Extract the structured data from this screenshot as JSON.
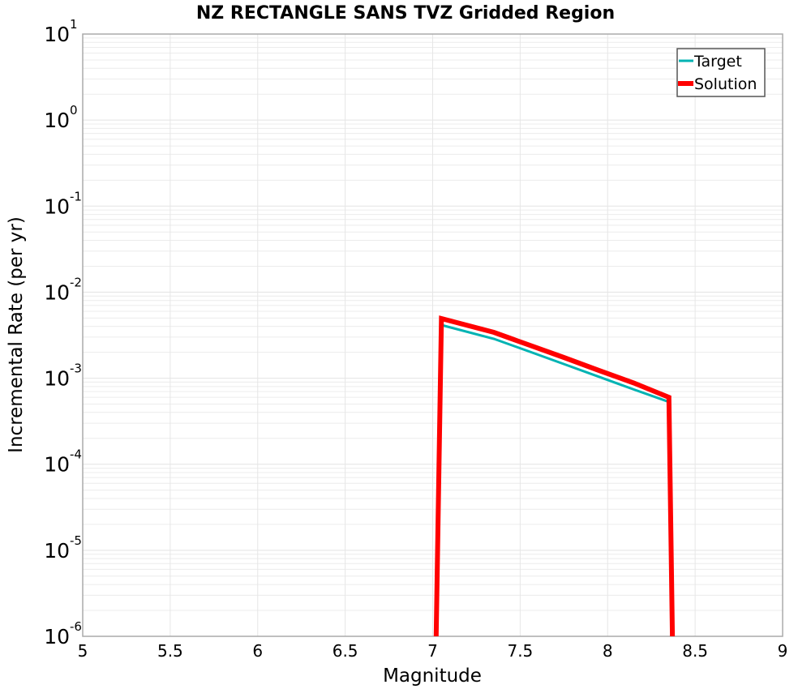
{
  "chart_data": {
    "type": "line",
    "title": "NZ RECTANGLE SANS TVZ Gridded Region",
    "xlabel": "Magnitude",
    "ylabel": "Incremental Rate (per yr)",
    "xlim": [
      5,
      9
    ],
    "ylim": [
      1e-06,
      10
    ],
    "yscale": "log",
    "grid": true,
    "legend_position": "top-right",
    "x_ticks": [
      "5",
      "5.5",
      "6",
      "6.5",
      "7",
      "7.5",
      "8",
      "8.5",
      "9"
    ],
    "y_ticks": [
      {
        "base": "10",
        "exp": "1"
      },
      {
        "base": "10",
        "exp": "0"
      },
      {
        "base": "10",
        "exp": "-1"
      },
      {
        "base": "10",
        "exp": "-2"
      },
      {
        "base": "10",
        "exp": "-3"
      },
      {
        "base": "10",
        "exp": "-4"
      },
      {
        "base": "10",
        "exp": "-5"
      },
      {
        "base": "10",
        "exp": "-6"
      }
    ],
    "series": [
      {
        "name": "Target",
        "color": "#00b3b3",
        "width": 3,
        "x": [
          7.05,
          7.35,
          7.55,
          7.75,
          7.95,
          8.15,
          8.35
        ],
        "values": [
          0.00415,
          0.00287,
          0.00205,
          0.00146,
          0.00104,
          0.00074,
          0.00053
        ]
      },
      {
        "name": "Solution",
        "color": "#ff0000",
        "width": 6,
        "x": [
          7.02,
          7.05,
          7.35,
          7.55,
          7.75,
          7.95,
          8.15,
          8.35,
          8.37
        ],
        "values": [
          1e-06,
          0.00493,
          0.00341,
          0.00243,
          0.00174,
          0.00123,
          0.00088,
          0.0006,
          1e-06
        ]
      }
    ]
  }
}
